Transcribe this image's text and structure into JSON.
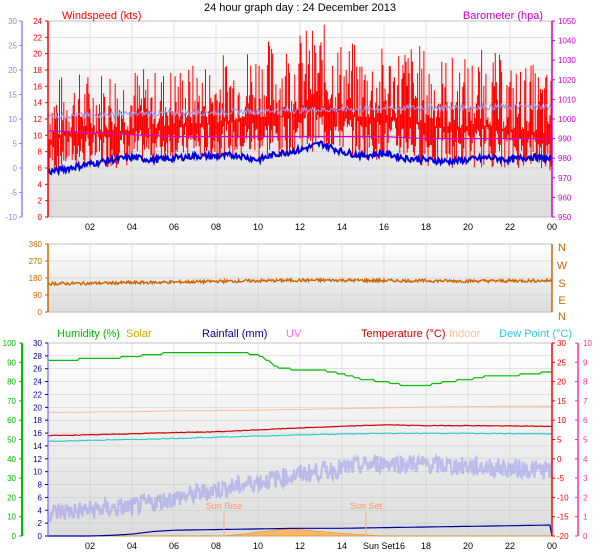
{
  "page_title": "24 hour graph day : 24 December 2013",
  "colors": {
    "grid": "#c9c9c9",
    "panel_top": "#ffffff",
    "panel_bottom": "#dcdcdc",
    "wind": "#ff0000",
    "gust": "#ff0000",
    "avg_wind": "#0000dd",
    "baro": "#cc00cc",
    "temp_axis": "#ff0000",
    "temp_line": "#cc0000",
    "dir": "#cc6600",
    "humidity": "#00bb00",
    "solar": "#ccaa00",
    "rain": "#000099",
    "uv": "#ff66ff",
    "indoor": "#ffbb99",
    "dewpoint": "#33cccc",
    "lavender": "#9999ee",
    "rain_axis_blue": "#8888ff",
    "right_pink": "#ff3399"
  },
  "chart_data": [
    {
      "type": "line",
      "name": "wind-baro-panel",
      "title": "",
      "labels": {
        "left": "Windspeed (kts)",
        "right": "Barometer (hpa)"
      },
      "x_ticks": [
        "02",
        "04",
        "06",
        "08",
        "10",
        "12",
        "14",
        "16",
        "18",
        "20",
        "22",
        "00"
      ],
      "x_range_hours": [
        0,
        24
      ],
      "y_left_inner": {
        "label": "Windspeed (kts)",
        "range": [
          0,
          24
        ],
        "ticks": [
          0,
          2,
          4,
          6,
          8,
          10,
          12,
          14,
          16,
          18,
          20,
          22,
          24
        ]
      },
      "y_left_outer": {
        "range": [
          -10,
          30
        ],
        "ticks": [
          -10,
          -5,
          0,
          5,
          10,
          15,
          20,
          25,
          30
        ]
      },
      "y_right": {
        "label": "Barometer (hpa)",
        "range": [
          950,
          1050
        ],
        "ticks": [
          950,
          960,
          970,
          980,
          990,
          1000,
          1010,
          1020,
          1030,
          1040,
          1050
        ]
      },
      "series": [
        {
          "name": "Windspeed",
          "kind": "gust-band",
          "units": "kts",
          "x": [
            0,
            1,
            2,
            3,
            4,
            5,
            6,
            7,
            8,
            9,
            10,
            11,
            12,
            13,
            14,
            15,
            16,
            17,
            18,
            19,
            20,
            21,
            22,
            23,
            24
          ],
          "low": [
            5,
            6,
            6,
            6,
            6,
            7,
            7,
            7,
            7,
            7,
            7,
            7,
            8,
            8,
            8,
            7,
            7,
            7,
            6,
            6,
            6,
            6,
            6,
            6,
            5
          ],
          "high": [
            17,
            18,
            18,
            19,
            19,
            18,
            19,
            19,
            20,
            21,
            22,
            22,
            23,
            24,
            22,
            21,
            21,
            22,
            21,
            20,
            20,
            21,
            19,
            19,
            18
          ]
        },
        {
          "name": "Wind average",
          "kind": "line",
          "units": "kts",
          "x": [
            0,
            1,
            2,
            3,
            4,
            5,
            6,
            7,
            8,
            9,
            10,
            11,
            12,
            13,
            14,
            15,
            16,
            17,
            18,
            19,
            20,
            21,
            22,
            23,
            24
          ],
          "y": [
            5.5,
            6.0,
            6.5,
            7.0,
            7.3,
            7.0,
            7.2,
            7.5,
            7.4,
            7.6,
            7.0,
            7.8,
            8.2,
            9.0,
            8.0,
            7.5,
            7.8,
            7.2,
            7.0,
            6.8,
            7.0,
            7.3,
            7.0,
            7.4,
            7.0
          ]
        },
        {
          "name": "Barometer",
          "kind": "line",
          "units": "hpa",
          "x": [
            0,
            2,
            4,
            6,
            8,
            10,
            12,
            14,
            16,
            18,
            20,
            22,
            24
          ],
          "y": [
            994,
            993,
            992,
            991,
            991,
            991,
            991,
            991,
            991,
            990,
            990,
            990,
            990
          ]
        },
        {
          "name": "Temperature",
          "kind": "line",
          "units": "°C",
          "x": [
            0,
            2,
            4,
            6,
            8,
            10,
            12,
            14,
            16,
            18,
            20,
            22,
            24
          ],
          "y": [
            10.5,
            10.8,
            11.0,
            11.2,
            11.4,
            11.6,
            11.8,
            12.0,
            12.2,
            12.3,
            12.4,
            12.5,
            12.5
          ]
        }
      ]
    },
    {
      "type": "line",
      "name": "wind-direction-panel",
      "title": "",
      "x_ticks": [],
      "y_left": {
        "range": [
          0,
          360
        ],
        "ticks": [
          0,
          90,
          180,
          270,
          360
        ]
      },
      "y_right_compass": [
        "N",
        "W",
        "S",
        "E",
        "N"
      ],
      "series": [
        {
          "name": "Wind direction",
          "units": "degrees",
          "x": [
            0,
            2,
            4,
            6,
            8,
            10,
            12,
            14,
            16,
            18,
            20,
            22,
            24
          ],
          "y": [
            150,
            152,
            155,
            158,
            162,
            165,
            168,
            168,
            166,
            165,
            164,
            165,
            166
          ]
        }
      ]
    },
    {
      "type": "line",
      "name": "temp-humidity-panel",
      "title": "",
      "legend": [
        "Humidity (%)",
        "Solar",
        "Rainfall (mm)",
        "UV",
        "Temperature (°C)",
        "Indoor",
        "Dew Point (°C)"
      ],
      "x_ticks": [
        "02",
        "04",
        "06",
        "08",
        "10",
        "12",
        "14",
        "16",
        "18",
        "20",
        "22",
        "00"
      ],
      "x_range_hours": [
        0,
        24
      ],
      "y_humidity": {
        "range": [
          0,
          100
        ],
        "ticks": [
          0,
          10,
          20,
          30,
          40,
          50,
          60,
          70,
          80,
          90,
          100
        ]
      },
      "y_rain": {
        "range": [
          0,
          30
        ],
        "ticks": [
          0,
          2,
          4,
          6,
          8,
          10,
          12,
          14,
          16,
          18,
          20,
          22,
          24,
          26,
          28,
          30
        ]
      },
      "y_temp": {
        "range": [
          -20,
          30
        ],
        "ticks": [
          -20,
          -15,
          -10,
          -5,
          0,
          5,
          10,
          15,
          20,
          25,
          30
        ]
      },
      "y_uv": {
        "range": [
          0,
          10
        ],
        "ticks": [
          0,
          1,
          2,
          3,
          4,
          5,
          6,
          7,
          8,
          9,
          10
        ]
      },
      "annotations": {
        "sunrise": "Sun Rise",
        "sunset": "Sun Set",
        "x_annotation": "Sun Set16"
      },
      "series": [
        {
          "name": "Humidity",
          "units": "%",
          "x": [
            0,
            1,
            2,
            3,
            4,
            5,
            6,
            7,
            8,
            9,
            10,
            11,
            12,
            13,
            14,
            15,
            16,
            17,
            18,
            19,
            20,
            21,
            22,
            23,
            24
          ],
          "y": [
            91,
            91,
            92,
            92,
            93,
            94,
            95,
            95,
            95,
            95,
            94,
            87,
            86,
            86,
            84,
            81,
            80,
            78,
            78,
            80,
            81,
            83,
            83,
            84,
            85
          ]
        },
        {
          "name": "Temperature",
          "units": "°C",
          "x": [
            0,
            2,
            4,
            6,
            8,
            10,
            12,
            14,
            16,
            18,
            20,
            22,
            24
          ],
          "y": [
            6.0,
            6.2,
            6.5,
            6.8,
            7.0,
            7.5,
            8.0,
            8.4,
            8.8,
            8.6,
            8.6,
            8.5,
            8.4
          ]
        },
        {
          "name": "Indoor",
          "units": "°C",
          "x": [
            0,
            2,
            4,
            6,
            8,
            10,
            12,
            14,
            16,
            18,
            20,
            22,
            24
          ],
          "y": [
            12.0,
            12.1,
            12.2,
            12.4,
            12.5,
            12.6,
            12.8,
            13.0,
            13.2,
            13.4,
            13.5,
            13.6,
            13.6
          ]
        },
        {
          "name": "Dew Point",
          "units": "°C",
          "x": [
            0,
            2,
            4,
            6,
            8,
            10,
            12,
            14,
            16,
            18,
            20,
            22,
            24
          ],
          "y": [
            4.5,
            4.8,
            5.0,
            5.3,
            5.6,
            5.9,
            6.2,
            6.4,
            6.6,
            6.6,
            6.6,
            6.5,
            6.5
          ]
        },
        {
          "name": "Solar",
          "units": "W/m²",
          "x": [
            0,
            8.3,
            9,
            10,
            11,
            11.5,
            12,
            13,
            14,
            15,
            15.9,
            24
          ],
          "y": [
            0,
            0,
            0.2,
            0.6,
            1.0,
            1.2,
            1.0,
            0.7,
            0.4,
            0.2,
            0,
            0
          ]
        },
        {
          "name": "Rainfall",
          "units": "mm",
          "x": [
            0,
            1,
            2,
            3,
            4,
            5,
            6,
            8,
            10,
            12,
            14,
            16,
            18,
            20,
            22,
            23.9,
            24
          ],
          "y": [
            0,
            0,
            0,
            0.1,
            0.3,
            0.7,
            0.9,
            1.0,
            1.1,
            1.2,
            1.2,
            1.3,
            1.4,
            1.5,
            1.6,
            1.7,
            0
          ]
        }
      ]
    }
  ]
}
